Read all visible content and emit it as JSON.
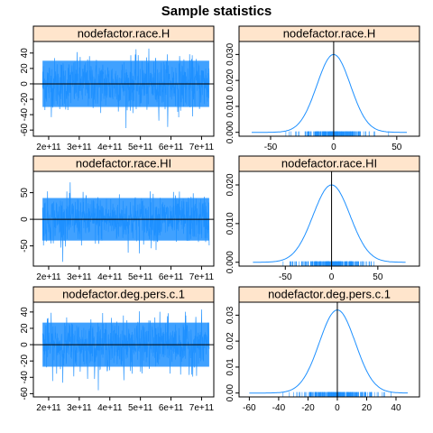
{
  "figure": {
    "title": "Sample statistics"
  },
  "colors": {
    "trace": "#1e90ff",
    "strip": "#ffe5cc",
    "frame": "#000000",
    "ref_line": "#000000"
  },
  "chart_data": [
    {
      "type": "line",
      "panel": "trace",
      "strip_label": "nodefactor.race.H",
      "xlim": [
        150000000000,
        740000000000
      ],
      "ylim": [
        -68,
        55
      ],
      "x_ticks": [
        200000000000,
        300000000000,
        400000000000,
        500000000000,
        600000000000,
        700000000000
      ],
      "x_tick_labels": [
        "2e+11",
        "3e+11",
        "4e+11",
        "5e+11",
        "6e+11",
        "7e+11"
      ],
      "y_ticks": [
        -60,
        -40,
        -20,
        0,
        20,
        40
      ],
      "y_tick_labels": [
        "-60",
        "-40",
        "-20",
        "0",
        "20",
        "40"
      ],
      "x_range": [
        180000000000,
        725000000000
      ],
      "band": [
        -30,
        30
      ],
      "extreme": [
        -63,
        50
      ],
      "reference_y": 0
    },
    {
      "type": "line",
      "panel": "density",
      "strip_label": "nodefactor.race.H",
      "xlim": [
        -75,
        68
      ],
      "ylim": [
        -0.0015,
        0.035
      ],
      "x_ticks": [
        -50,
        0,
        50
      ],
      "x_tick_labels": [
        "-50",
        "0",
        "50"
      ],
      "y_ticks": [
        0,
        0.01,
        0.02,
        0.03
      ],
      "y_tick_labels": [
        "0.000",
        "0.010",
        "0.020",
        "0.030"
      ],
      "mean": 0,
      "sd": 13.3,
      "peak_density": 0.03,
      "x_range": [
        -65,
        58
      ],
      "reference_x": 0
    },
    {
      "type": "line",
      "panel": "trace",
      "strip_label": "nodefactor.race.HI",
      "xlim": [
        150000000000,
        740000000000
      ],
      "ylim": [
        -88,
        90
      ],
      "x_ticks": [
        200000000000,
        300000000000,
        400000000000,
        500000000000,
        600000000000,
        700000000000
      ],
      "x_tick_labels": [
        "2e+11",
        "3e+11",
        "4e+11",
        "5e+11",
        "6e+11",
        "7e+11"
      ],
      "y_ticks": [
        -50,
        0,
        50
      ],
      "y_tick_labels": [
        "-50",
        "0",
        "50"
      ],
      "x_range": [
        180000000000,
        725000000000
      ],
      "band": [
        -40,
        40
      ],
      "extreme": [
        -80,
        75
      ],
      "reference_y": 0
    },
    {
      "type": "line",
      "panel": "density",
      "strip_label": "nodefactor.race.HI",
      "xlim": [
        -100,
        95
      ],
      "ylim": [
        -0.001,
        0.0235
      ],
      "x_ticks": [
        -50,
        0,
        50
      ],
      "x_tick_labels": [
        "-50",
        "0",
        "50"
      ],
      "y_ticks": [
        0,
        0.01,
        0.02
      ],
      "y_tick_labels": [
        "0.000",
        "0.010",
        "0.020"
      ],
      "mean": 0,
      "sd": 20,
      "peak_density": 0.02,
      "x_range": [
        -85,
        80
      ],
      "reference_x": 0
    },
    {
      "type": "line",
      "panel": "trace",
      "strip_label": "nodefactor.deg.pers.c.1",
      "xlim": [
        150000000000,
        740000000000
      ],
      "ylim": [
        -64,
        52
      ],
      "x_ticks": [
        200000000000,
        300000000000,
        400000000000,
        500000000000,
        600000000000,
        700000000000
      ],
      "x_tick_labels": [
        "2e+11",
        "3e+11",
        "4e+11",
        "5e+11",
        "6e+11",
        "7e+11"
      ],
      "y_ticks": [
        -60,
        -40,
        -20,
        0,
        20,
        40
      ],
      "y_tick_labels": [
        "-60",
        "-40",
        "-20",
        "0",
        "20",
        "40"
      ],
      "x_range": [
        180000000000,
        725000000000
      ],
      "band": [
        -27,
        27
      ],
      "extreme": [
        -58,
        43
      ],
      "reference_y": 0
    },
    {
      "type": "line",
      "panel": "density",
      "strip_label": "nodefactor.deg.pers.c.1",
      "xlim": [
        -67,
        56
      ],
      "ylim": [
        -0.0015,
        0.035
      ],
      "x_ticks": [
        -60,
        -40,
        -20,
        0,
        20,
        40
      ],
      "x_tick_labels": [
        "-60",
        "-40",
        "-20",
        "0",
        "20",
        "40"
      ],
      "y_ticks": [
        0,
        0.01,
        0.02,
        0.03
      ],
      "y_tick_labels": [
        "0.00",
        "0.01",
        "0.02",
        "0.03"
      ],
      "mean": 0,
      "sd": 12.3,
      "peak_density": 0.032,
      "x_range": [
        -60,
        48
      ],
      "reference_x": 0
    }
  ]
}
